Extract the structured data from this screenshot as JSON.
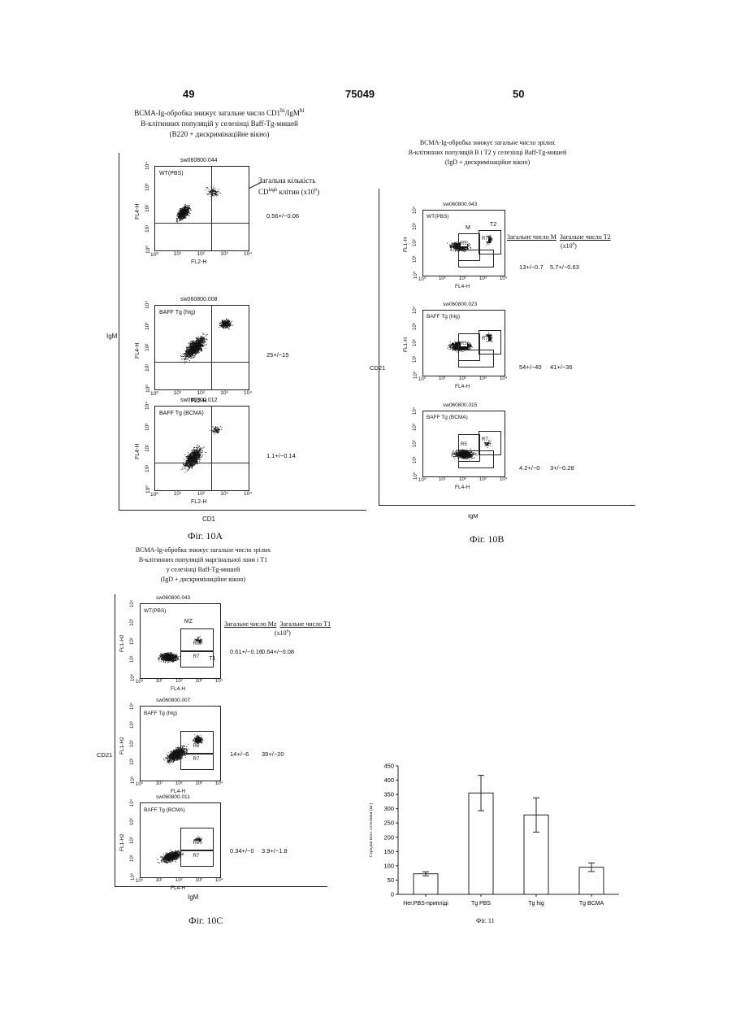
{
  "header": {
    "left_page": "49",
    "center_number": "75049",
    "right_page": "50"
  },
  "fig10a": {
    "title_line1": "BCMA-Ig-обробка знижує загальне число CD1",
    "title_sup1": "hi",
    "title_mid": "/IgM",
    "title_sup2": "hi",
    "title_line2": "В-клітинних популяцій у селезінці Baff-Tg-мишей",
    "title_line3": "(B220 + дискримінаційне вікно)",
    "y_axis_label": "IgM",
    "x_axis_label": "CD1",
    "caption": "Фіг. 10A",
    "annotation_line1": "Загальна кількість",
    "annotation_line2a": "CD",
    "annotation_sup": "high",
    "annotation_line2b": " клітин (x10",
    "annotation_sup2": "6",
    "annotation_line2c": ")",
    "panels": [
      {
        "sample": "sw060800.044",
        "label": "WT(PBS)",
        "x_label": "FL2-H",
        "y_label": "FL4-H",
        "value": "0.56+/−0.06"
      },
      {
        "sample": "sw060800.008",
        "label": "BAFF Tg (hIg)",
        "x_label": "FL2-H",
        "y_label": "FL4-H",
        "value": "25+/−15"
      },
      {
        "sample": "sw060800.012",
        "label": "BAFF Tg (BCMA)",
        "x_label": "FL2-H",
        "y_label": "FL4-H",
        "value": "1.1+/−0.14"
      }
    ]
  },
  "fig10b": {
    "title_line1": "BCMA-Ig-обробка знижує загальне число зрілих",
    "title_line2": "В-клітинних популяцій В і Т2 у селезінці Baff-Tg-мишей",
    "title_line3": "(IgD + дискримінаційне вікно)",
    "col_m": "Загальне число М",
    "col_t2": "Загальне число Т2",
    "units": "(x10",
    "units_sup": "6",
    "units_end": ")",
    "y_axis_label": "CD21",
    "x_axis_label": "IgM",
    "caption": "Фіг. 10B",
    "panels": [
      {
        "sample": "sw060800.043",
        "label": "WT(PBS)",
        "x_label": "FL4-H",
        "y_label": "FL1-H",
        "m": "13+/−0.7",
        "t2": "5.7+/−0.63",
        "gate_m": "M",
        "gate_t2": "T2",
        "r1": "R5",
        "r2": "R7"
      },
      {
        "sample": "sw060800.023",
        "label": "BAFF Tg (hIg)",
        "x_label": "FL4-H",
        "y_label": "FL1-H",
        "m": "54+/−40",
        "t2": "41+/−36",
        "r1": "R5",
        "r2": "R7"
      },
      {
        "sample": "sw060800.015",
        "label": "BAFF Tg (BCMA)",
        "x_label": "FL4-H",
        "y_label": "",
        "m": "4.2+/−0",
        "t2": "3+/−0.28",
        "r1": "R5",
        "r2": "R7"
      }
    ]
  },
  "fig10c": {
    "title_line1": "BCMA-Ig-обробка знижує загальне число зрілих",
    "title_line2": "В-клітинних популяцій маргінальної зони і Т1",
    "title_line3": "у селезінці Baff-Tg-мишей",
    "title_line4": "(IgD + дискримінаційне вікно)",
    "col_mz": "Загальне число Mz",
    "col_t1": "Загальне число Т1",
    "units": "(x10",
    "units_sup": "6",
    "units_end": ")",
    "y_axis_label": "CD21",
    "x_axis_label": "IgM",
    "caption": "Фіг. 10C",
    "panels": [
      {
        "sample": "sw060800.043",
        "label": "WT(PBS)",
        "x_label": "FL4-H",
        "y_label": "FL1-H2",
        "mz": "0.61+/−0.16",
        "t1": "0.64+/−0.08",
        "gate_mz": "MZ",
        "gate_t1": "T1",
        "r1": "R6",
        "r2": "R7"
      },
      {
        "sample": "sw060800.007",
        "label": "BAFF Tg (hIg)",
        "x_label": "FL4-H",
        "y_label": "FL1-H2",
        "mz": "14+/−6",
        "t1": "39+/−20",
        "r1": "R6",
        "r2": "R7"
      },
      {
        "sample": "sw060800.011",
        "label": "BAFF Tg (BCMA)",
        "x_label": "FL4-H",
        "y_label": "FL1-H2",
        "mz": "0.34+/−0",
        "t1": "3.9+/−1.8",
        "r1": "R6",
        "r2": "R7"
      }
    ]
  },
  "log_ticks": [
    "10⁰",
    "10¹",
    "10²",
    "10³",
    "10⁴"
  ],
  "chart_data": {
    "type": "bar",
    "title": "",
    "categories": [
      "Нег.PBS-припліді",
      "Tg PBS",
      "Tg hig",
      "Tg BCMA"
    ],
    "values": [
      72,
      355,
      278,
      95
    ],
    "errors": [
      7,
      62,
      60,
      15
    ],
    "ylabel": "Середня маса селезінки (мг)",
    "xlabel": "",
    "ylim": [
      0,
      450
    ],
    "yticks": [
      0,
      50,
      100,
      150,
      200,
      250,
      300,
      350,
      400,
      450
    ],
    "grid": false
  },
  "fig11_caption": "Фіг. 11"
}
